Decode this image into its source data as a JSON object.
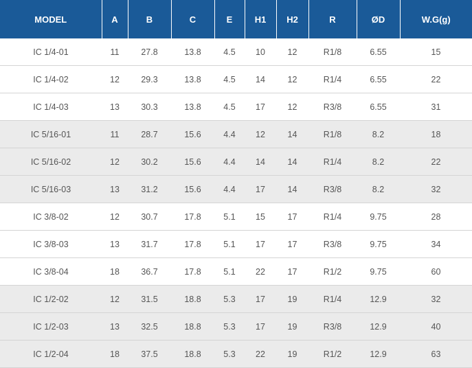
{
  "table": {
    "headers": [
      "MODEL",
      "A",
      "B",
      "C",
      "E",
      "H1",
      "H2",
      "R",
      "ØD",
      "W.G(g)"
    ],
    "rows": [
      [
        "IC 1/4-01",
        "11",
        "27.8",
        "13.8",
        "4.5",
        "10",
        "12",
        "R1/8",
        "6.55",
        "15"
      ],
      [
        "IC 1/4-02",
        "12",
        "29.3",
        "13.8",
        "4.5",
        "14",
        "12",
        "R1/4",
        "6.55",
        "22"
      ],
      [
        "IC 1/4-03",
        "13",
        "30.3",
        "13.8",
        "4.5",
        "17",
        "12",
        "R3/8",
        "6.55",
        "31"
      ],
      [
        "IC 5/16-01",
        "11",
        "28.7",
        "15.6",
        "4.4",
        "12",
        "14",
        "R1/8",
        "8.2",
        "18"
      ],
      [
        "IC 5/16-02",
        "12",
        "30.2",
        "15.6",
        "4.4",
        "14",
        "14",
        "R1/4",
        "8.2",
        "22"
      ],
      [
        "IC 5/16-03",
        "13",
        "31.2",
        "15.6",
        "4.4",
        "17",
        "14",
        "R3/8",
        "8.2",
        "32"
      ],
      [
        "IC 3/8-02",
        "12",
        "30.7",
        "17.8",
        "5.1",
        "15",
        "17",
        "R1/4",
        "9.75",
        "28"
      ],
      [
        "IC 3/8-03",
        "13",
        "31.7",
        "17.8",
        "5.1",
        "17",
        "17",
        "R3/8",
        "9.75",
        "34"
      ],
      [
        "IC 3/8-04",
        "18",
        "36.7",
        "17.8",
        "5.1",
        "22",
        "17",
        "R1/2",
        "9.75",
        "60"
      ],
      [
        "IC 1/2-02",
        "12",
        "31.5",
        "18.8",
        "5.3",
        "17",
        "19",
        "R1/4",
        "12.9",
        "32"
      ],
      [
        "IC 1/2-03",
        "13",
        "32.5",
        "18.8",
        "5.3",
        "17",
        "19",
        "R3/8",
        "12.9",
        "40"
      ],
      [
        "IC 1/2-04",
        "18",
        "37.5",
        "18.8",
        "5.3",
        "22",
        "19",
        "R1/2",
        "12.9",
        "63"
      ]
    ]
  },
  "colors": {
    "header_background": "#1a5a98",
    "header_text": "#ffffff",
    "shaded_row": "#ebebeb",
    "plain_row": "#ffffff",
    "cell_text": "#555555"
  }
}
